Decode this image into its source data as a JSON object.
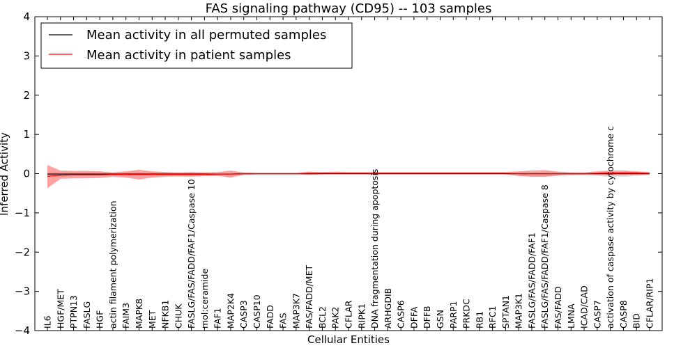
{
  "chart_data": {
    "type": "line",
    "title": "FAS signaling pathway (CD95) -- 103 samples",
    "xlabel": "Cellular Entities",
    "ylabel": "Inferred Activity",
    "ylim": [
      -4,
      4
    ],
    "yticks": [
      4,
      3,
      2,
      1,
      0,
      -1,
      -2,
      -3,
      -4
    ],
    "ytick_labels": [
      "4",
      "3",
      "2",
      "1",
      "0",
      "−1",
      "−2",
      "−3",
      "−4"
    ],
    "legend": {
      "position": "top-left",
      "entries": [
        {
          "label": "Mean activity in all permuted samples",
          "color": "#000000"
        },
        {
          "label": "Mean activity in patient samples",
          "color": "#ff0000"
        }
      ]
    },
    "categories": [
      "IL6",
      "HGF/MET",
      "PTPN13",
      "FASLG",
      "HGF",
      "actin filament polymerization",
      "FAIM3",
      "MAPK8",
      "MET",
      "NFKB1",
      "CHUK",
      "FASLG/FAS/FADD/FAF1/Caspase 10",
      "mol:ceramide",
      "FAF1",
      "MAP2K4",
      "CASP3",
      "CASP10",
      "FADD",
      "FAS",
      "MAP3K7",
      "FAS/FADD/MET",
      "BCL2",
      "PAK2",
      "CFLAR",
      "RIPK1",
      "DNA fragmentation during apoptosis",
      "ARHGDIB",
      "CASP6",
      "DFFA",
      "DFFB",
      "GSN",
      "PARP1",
      "PRKDC",
      "RB1",
      "RFC1",
      "SPTAN1",
      "MAP3K1",
      "FASLG/FAS/FADD/FAF1",
      "FASLG/FAS/FADD/FAF1/Caspase 8",
      "FAS/FADD",
      "LMNA",
      "ICAD/CAD",
      "CASP7",
      "activation of caspase activity by cytochrome c",
      "CASP8",
      "BID",
      "CFLAR/RIP1"
    ],
    "series": [
      {
        "name": "Mean activity in patient samples",
        "color": "#ff0000",
        "values": [
          -0.07,
          -0.04,
          -0.03,
          -0.03,
          -0.03,
          -0.02,
          -0.02,
          -0.02,
          -0.02,
          -0.02,
          -0.02,
          -0.02,
          -0.02,
          -0.01,
          -0.01,
          0,
          0,
          0,
          0,
          0,
          0.01,
          0.01,
          0.01,
          0.01,
          0.01,
          0.01,
          0.01,
          0.01,
          0.01,
          0.01,
          0.01,
          0.01,
          0.01,
          0.01,
          0.01,
          0.01,
          0,
          0,
          0,
          0,
          0,
          0,
          0.01,
          0.02,
          0.02,
          0.02,
          0.01
        ],
        "band_upper": [
          0.22,
          0.08,
          0.07,
          0.07,
          0.06,
          0.03,
          0.06,
          0.1,
          0.06,
          0.04,
          0.03,
          0.04,
          0.03,
          0.04,
          0.08,
          0.03,
          0.02,
          0.02,
          0.02,
          0.02,
          0.05,
          0.04,
          0.05,
          0.04,
          0.04,
          0.04,
          0.04,
          0.04,
          0.04,
          0.04,
          0.04,
          0.04,
          0.04,
          0.04,
          0.04,
          0.04,
          0.06,
          0.08,
          0.09,
          0.05,
          0.03,
          0.03,
          0.06,
          0.08,
          0.08,
          0.06,
          0.04
        ],
        "band_lower": [
          -0.37,
          -0.13,
          -0.12,
          -0.12,
          -0.11,
          -0.08,
          -0.1,
          -0.15,
          -0.1,
          -0.08,
          -0.07,
          -0.08,
          -0.06,
          -0.06,
          -0.1,
          -0.03,
          -0.02,
          -0.02,
          -0.02,
          -0.02,
          -0.03,
          -0.02,
          -0.02,
          -0.02,
          -0.02,
          -0.02,
          -0.02,
          -0.02,
          -0.02,
          -0.02,
          -0.02,
          -0.02,
          -0.02,
          -0.02,
          -0.02,
          -0.02,
          -0.06,
          -0.08,
          -0.08,
          -0.05,
          -0.03,
          -0.03,
          -0.04,
          -0.04,
          -0.04,
          -0.03,
          -0.02
        ]
      },
      {
        "name": "Mean activity in all permuted samples",
        "color": "#000000",
        "values": [
          -0.01,
          -0.01,
          -0.01,
          -0.01,
          -0.01,
          -0.01,
          -0.01,
          -0.01,
          -0.01,
          -0.01,
          -0.01,
          -0.01,
          -0.01,
          -0.01,
          -0.01,
          0,
          0,
          0,
          0,
          0,
          0,
          0,
          0,
          0,
          0,
          0,
          0,
          0,
          0,
          0,
          0,
          0,
          0,
          0,
          0,
          0,
          0,
          0,
          0,
          0,
          0,
          0,
          0,
          0,
          0,
          0,
          0
        ],
        "band_upper": [
          0.03,
          0.03,
          0.03,
          0.03,
          0.03,
          0.02,
          0.03,
          0.03,
          0.03,
          0.03,
          0.02,
          0.02,
          0.02,
          0.02,
          0.02,
          0.01,
          0.01,
          0.01,
          0.01,
          0.01,
          0.01,
          0.01,
          0.01,
          0.01,
          0.01,
          0.01,
          0.01,
          0.01,
          0.01,
          0.01,
          0.01,
          0.01,
          0.01,
          0.01,
          0.01,
          0.01,
          0.02,
          0.02,
          0.02,
          0.02,
          0.02,
          0.02,
          0.02,
          0.03,
          0.03,
          0.03,
          0.02
        ],
        "band_lower": [
          -0.05,
          -0.05,
          -0.05,
          -0.05,
          -0.05,
          -0.04,
          -0.05,
          -0.05,
          -0.05,
          -0.05,
          -0.04,
          -0.04,
          -0.04,
          -0.04,
          -0.04,
          -0.02,
          -0.02,
          -0.02,
          -0.02,
          -0.02,
          -0.02,
          -0.02,
          -0.02,
          -0.02,
          -0.02,
          -0.02,
          -0.02,
          -0.02,
          -0.02,
          -0.02,
          -0.02,
          -0.02,
          -0.02,
          -0.02,
          -0.02,
          -0.02,
          -0.05,
          -0.06,
          -0.06,
          -0.04,
          -0.03,
          -0.03,
          -0.05,
          -0.08,
          -0.08,
          -0.06,
          -0.04
        ]
      }
    ]
  }
}
